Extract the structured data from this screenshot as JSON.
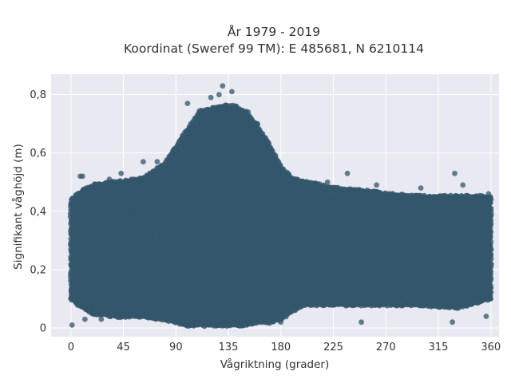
{
  "chart_data": {
    "type": "scatter",
    "title": "År 1979 - 2019",
    "subtitle": "Koordinat (Sweref 99 TM): E 485681, N 6210114",
    "xlabel": "Vågriktning (grader)",
    "ylabel": "Signifikant våghöjd (m)",
    "xlim": [
      -17,
      367
    ],
    "ylim": [
      -0.03,
      0.87
    ],
    "x_ticks": [
      0,
      45,
      90,
      135,
      180,
      225,
      270,
      315,
      360
    ],
    "x_tick_labels": [
      "0",
      "45",
      "90",
      "135",
      "180",
      "225",
      "270",
      "315",
      "360"
    ],
    "y_ticks": [
      0,
      0.2,
      0.4,
      0.6,
      0.8
    ],
    "y_tick_labels": [
      "0",
      "0,2",
      "0,4",
      "0,6",
      "0,8"
    ],
    "grid": true,
    "background_color": "#e9e9f1",
    "marker_color": "#33566c",
    "series": [
      {
        "envelope": {
          "direction": [
            0,
            10,
            20,
            40,
            60,
            80,
            90,
            100,
            110,
            120,
            130,
            140,
            150,
            160,
            170,
            180,
            190,
            200,
            225,
            250,
            270,
            300,
            330,
            360
          ],
          "min_height": [
            0.1,
            0.07,
            0.05,
            0.04,
            0.04,
            0.03,
            0.02,
            0.01,
            0.01,
            0.01,
            0.01,
            0.01,
            0.01,
            0.02,
            0.02,
            0.03,
            0.06,
            0.08,
            0.08,
            0.08,
            0.08,
            0.08,
            0.07,
            0.1
          ],
          "max_height": [
            0.44,
            0.47,
            0.49,
            0.5,
            0.51,
            0.56,
            0.62,
            0.68,
            0.74,
            0.75,
            0.76,
            0.76,
            0.74,
            0.69,
            0.63,
            0.55,
            0.51,
            0.5,
            0.48,
            0.47,
            0.46,
            0.45,
            0.45,
            0.45
          ]
        },
        "outliers": [
          {
            "x": 1,
            "y": 0.01
          },
          {
            "x": 8,
            "y": 0.52
          },
          {
            "x": 10,
            "y": 0.52
          },
          {
            "x": 12,
            "y": 0.03
          },
          {
            "x": 18,
            "y": 0.05
          },
          {
            "x": 26,
            "y": 0.03
          },
          {
            "x": 33,
            "y": 0.51
          },
          {
            "x": 43,
            "y": 0.53
          },
          {
            "x": 62,
            "y": 0.57
          },
          {
            "x": 74,
            "y": 0.57
          },
          {
            "x": 100,
            "y": 0.77
          },
          {
            "x": 105,
            "y": 0.01
          },
          {
            "x": 120,
            "y": 0.79
          },
          {
            "x": 127,
            "y": 0.8
          },
          {
            "x": 130,
            "y": 0.83
          },
          {
            "x": 138,
            "y": 0.81
          },
          {
            "x": 152,
            "y": 0.74
          },
          {
            "x": 160,
            "y": 0.7
          },
          {
            "x": 168,
            "y": 0.62
          },
          {
            "x": 180,
            "y": 0.02
          },
          {
            "x": 194,
            "y": 0.51
          },
          {
            "x": 220,
            "y": 0.5
          },
          {
            "x": 237,
            "y": 0.53
          },
          {
            "x": 249,
            "y": 0.02
          },
          {
            "x": 262,
            "y": 0.49
          },
          {
            "x": 300,
            "y": 0.48
          },
          {
            "x": 327,
            "y": 0.02
          },
          {
            "x": 329,
            "y": 0.53
          },
          {
            "x": 336,
            "y": 0.49
          },
          {
            "x": 356,
            "y": 0.04
          },
          {
            "x": 358,
            "y": 0.46
          }
        ]
      }
    ]
  }
}
